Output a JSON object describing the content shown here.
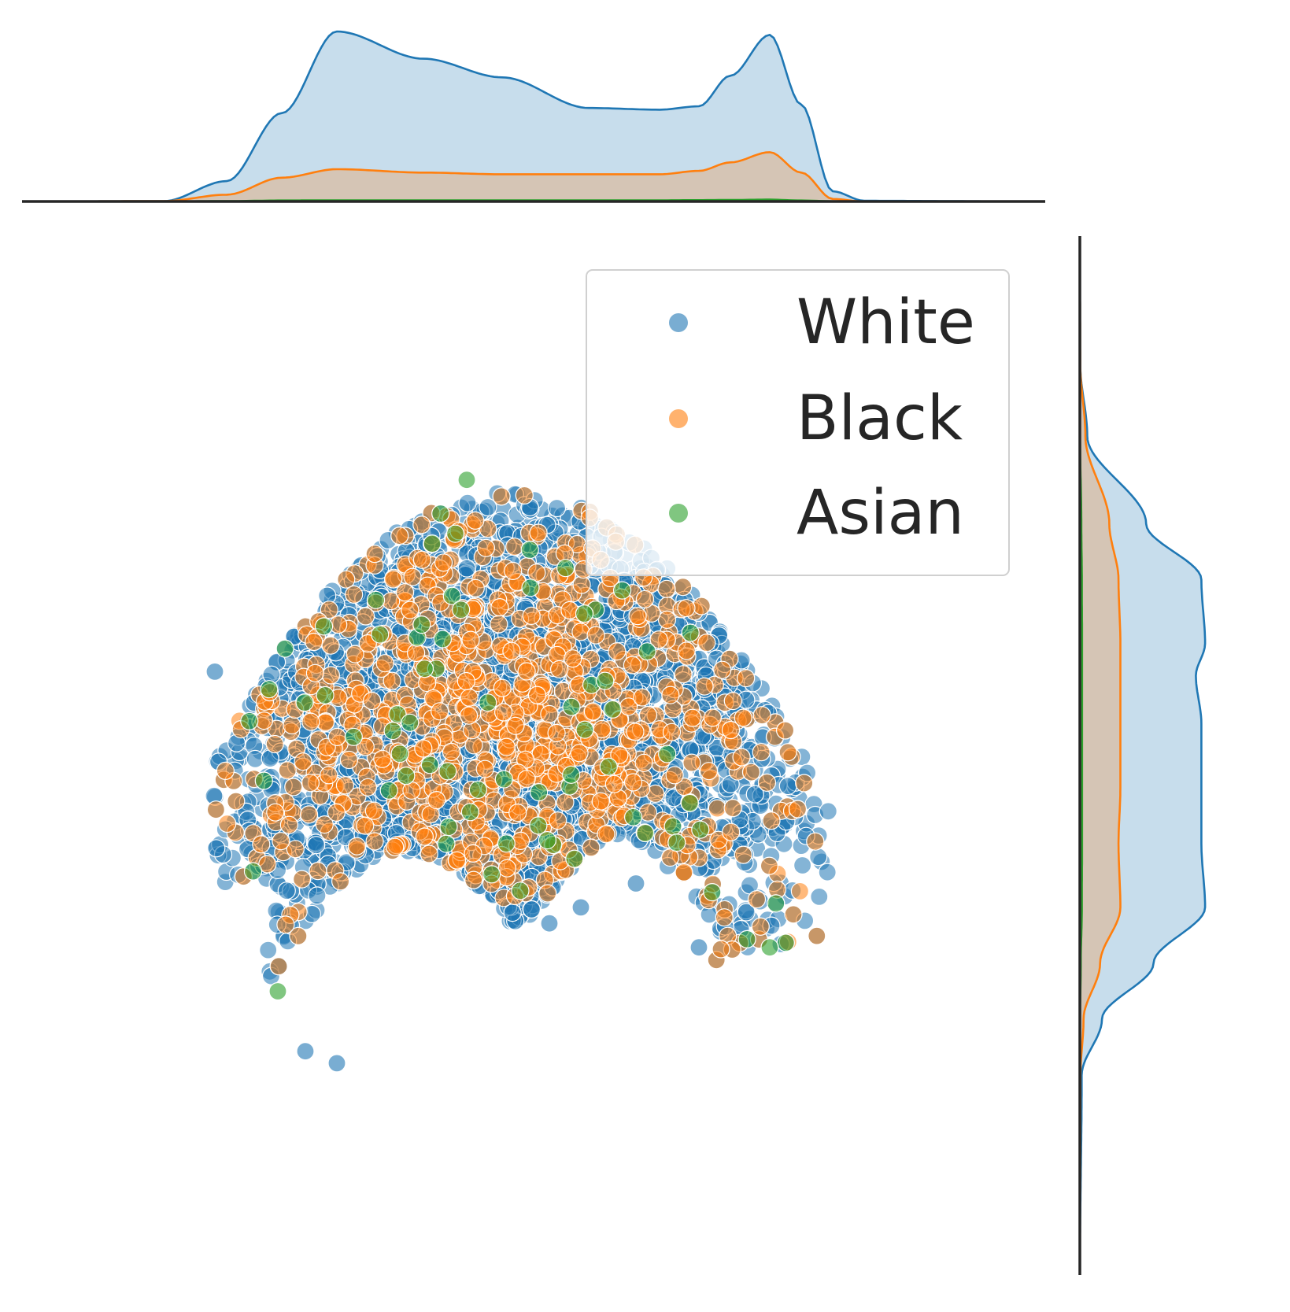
{
  "colors": {
    "White": "#1f77b4",
    "Black": "#ff7f0e",
    "Asian": "#2ca02c",
    "axis": "#262626",
    "legend_border": "#d0d0d0",
    "marker_edge": "#ffffff"
  },
  "chart_data": {
    "type": "scatter",
    "subtype": "jointplot with kde marginals",
    "title": "",
    "xlabel": "",
    "ylabel": "",
    "xlim": [
      -6.5,
      6.5
    ],
    "ylim": [
      -6.5,
      6.5
    ],
    "axes_visible": false,
    "grid": false,
    "legend": {
      "position": "upper-right",
      "entries": [
        "White",
        "Black",
        "Asian"
      ]
    },
    "hue_order": [
      "White",
      "Black",
      "Asian"
    ],
    "point_counts_approx": {
      "White": 4200,
      "Black": 900,
      "Asian": 70
    },
    "notable_points": [
      {
        "group": "White",
        "x": -4.05,
        "y": 1.05
      },
      {
        "group": "White",
        "x": -2.9,
        "y": -3.7
      },
      {
        "group": "White",
        "x": -2.5,
        "y": -3.85
      },
      {
        "group": "White",
        "x": 2.1,
        "y": -2.4
      },
      {
        "group": "White",
        "x": 0.6,
        "y": -1.9
      },
      {
        "group": "White",
        "x": 0.2,
        "y": -2.1
      },
      {
        "group": "White",
        "x": 1.3,
        "y": -1.6
      },
      {
        "group": "Asian",
        "x": -0.85,
        "y": 3.45
      },
      {
        "group": "Asian",
        "x": 3.0,
        "y": -2.4
      },
      {
        "group": "Asian",
        "x": -3.25,
        "y": -2.95
      }
    ],
    "marginal_x": {
      "x": [
        -6.5,
        -4.7,
        -3.9,
        -3.2,
        -2.5,
        -1.4,
        -0.4,
        0.7,
        1.6,
        2.1,
        2.5,
        3.0,
        3.4,
        3.8,
        4.2,
        6.5
      ],
      "series": [
        {
          "name": "White",
          "density": [
            0,
            0.002,
            0.12,
            0.52,
            1.0,
            0.84,
            0.73,
            0.55,
            0.54,
            0.56,
            0.74,
            0.98,
            0.57,
            0.06,
            0.004,
            0
          ]
        },
        {
          "name": "Black",
          "density": [
            0,
            0.002,
            0.04,
            0.14,
            0.19,
            0.17,
            0.16,
            0.16,
            0.16,
            0.18,
            0.23,
            0.29,
            0.17,
            0.015,
            0,
            0
          ]
        },
        {
          "name": "Asian",
          "density": [
            0,
            0,
            0.002,
            0.006,
            0.007,
            0.007,
            0.007,
            0.007,
            0.007,
            0.008,
            0.009,
            0.011,
            0.006,
            0.001,
            0,
            0
          ]
        }
      ]
    },
    "marginal_y": {
      "y": [
        6.5,
        4.9,
        4.0,
        2.9,
        2.2,
        1.4,
        1.0,
        0.4,
        -0.4,
        -1.1,
        -1.9,
        -2.6,
        -3.3,
        -4.0,
        -6.5
      ],
      "series": [
        {
          "name": "White",
          "density": [
            0,
            0.002,
            0.04,
            0.36,
            0.66,
            0.68,
            0.63,
            0.66,
            0.66,
            0.66,
            0.68,
            0.4,
            0.12,
            0.01,
            0
          ]
        },
        {
          "name": "Black",
          "density": [
            0,
            0.002,
            0.03,
            0.16,
            0.21,
            0.22,
            0.22,
            0.22,
            0.22,
            0.21,
            0.22,
            0.11,
            0.02,
            0.003,
            0
          ]
        },
        {
          "name": "Asian",
          "density": [
            0,
            0,
            0.001,
            0.008,
            0.011,
            0.012,
            0.012,
            0.012,
            0.012,
            0.012,
            0.011,
            0.005,
            0.001,
            0,
            0
          ]
        }
      ]
    }
  }
}
